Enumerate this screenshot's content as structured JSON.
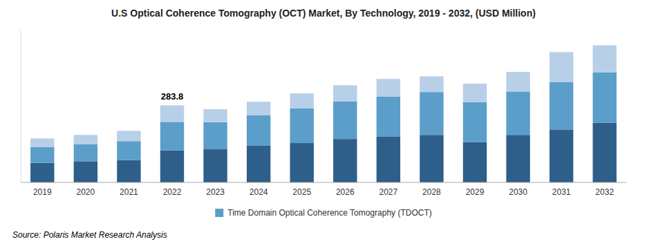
{
  "chart_data": {
    "type": "bar",
    "title": "U.S Optical Coherence Tomography (OCT) Market, By Technology, 2019 - 2032, (USD Million)",
    "categories": [
      "2019",
      "2020",
      "2021",
      "2022",
      "2023",
      "2024",
      "2025",
      "2026",
      "2027",
      "2028",
      "2029",
      "2030",
      "2031",
      "2032"
    ],
    "series": [
      {
        "color": "#2e5f8a",
        "values": [
          72,
          78,
          82,
          118,
          122,
          135,
          145,
          160,
          168,
          175,
          148,
          175,
          195,
          220
        ]
      },
      {
        "name": "Time Domain Optical Coherence Tomography (TDOCT)",
        "color": "#5b9ec9",
        "values": [
          58,
          62,
          70,
          105,
          100,
          112,
          128,
          138,
          148,
          158,
          148,
          160,
          175,
          185
        ]
      },
      {
        "color": "#b8cfe8",
        "values": [
          32,
          35,
          38,
          61,
          48,
          50,
          55,
          60,
          65,
          58,
          68,
          72,
          110,
          100
        ]
      }
    ],
    "stacked": true,
    "ylim": [
      0,
      560
    ],
    "tick_labels": "x",
    "grid": false,
    "legend": "bottom",
    "annotations": [
      {
        "text": "283.8",
        "x": "2022"
      }
    ],
    "source": "Source: Polaris Market Research Analysis"
  }
}
